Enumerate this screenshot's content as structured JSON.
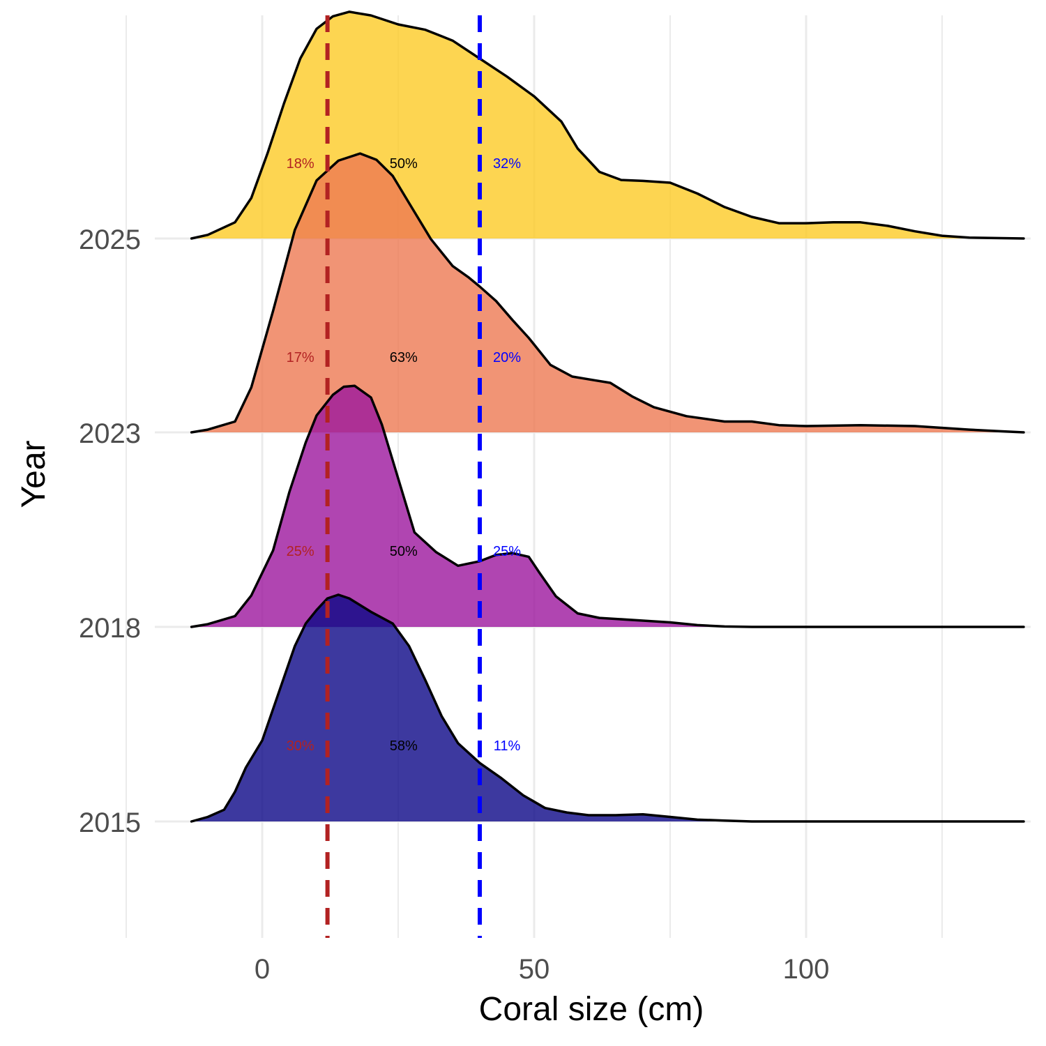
{
  "chart_data": {
    "type": "ridgeline",
    "xlabel": "Coral size (cm)",
    "ylabel": "Year",
    "xlim": [
      -26,
      141
    ],
    "x_ticks": [
      0,
      50,
      100
    ],
    "grid": true,
    "categories": [
      "2015",
      "2018",
      "2023",
      "2025"
    ],
    "thresholds": [
      {
        "name": "lower",
        "value": 12,
        "color": "#b22222",
        "style": "dashed"
      },
      {
        "name": "upper",
        "value": 40,
        "color": "#0000ff",
        "style": "dashed"
      }
    ],
    "series": [
      {
        "year": "2015",
        "fill": "#0d0887",
        "points": [
          [
            -13,
            0
          ],
          [
            -10,
            0.05
          ],
          [
            -7,
            0.13
          ],
          [
            -5,
            0.33
          ],
          [
            -3,
            0.6
          ],
          [
            0,
            0.9
          ],
          [
            2,
            1.25
          ],
          [
            4,
            1.6
          ],
          [
            6,
            1.95
          ],
          [
            8,
            2.2
          ],
          [
            10,
            2.35
          ],
          [
            12,
            2.48
          ],
          [
            14,
            2.52
          ],
          [
            16,
            2.48
          ],
          [
            20,
            2.33
          ],
          [
            24,
            2.2
          ],
          [
            27,
            1.95
          ],
          [
            30,
            1.57
          ],
          [
            33,
            1.17
          ],
          [
            36,
            0.87
          ],
          [
            40,
            0.65
          ],
          [
            44,
            0.48
          ],
          [
            48,
            0.29
          ],
          [
            52,
            0.15
          ],
          [
            56,
            0.1
          ],
          [
            60,
            0.07
          ],
          [
            65,
            0.07
          ],
          [
            70,
            0.08
          ],
          [
            75,
            0.05
          ],
          [
            80,
            0.02
          ],
          [
            85,
            0.01
          ],
          [
            90,
            0
          ],
          [
            140,
            0
          ]
        ]
      },
      {
        "year": "2018",
        "fill": "#9c179e",
        "points": [
          [
            -13,
            0
          ],
          [
            -10,
            0.03
          ],
          [
            -5,
            0.12
          ],
          [
            -2,
            0.35
          ],
          [
            2,
            0.85
          ],
          [
            5,
            1.5
          ],
          [
            8,
            2.05
          ],
          [
            10,
            2.35
          ],
          [
            13,
            2.58
          ],
          [
            15,
            2.67
          ],
          [
            17,
            2.68
          ],
          [
            20,
            2.55
          ],
          [
            22,
            2.25
          ],
          [
            25,
            1.65
          ],
          [
            28,
            1.05
          ],
          [
            32,
            0.83
          ],
          [
            36,
            0.68
          ],
          [
            40,
            0.73
          ],
          [
            43,
            0.8
          ],
          [
            46,
            0.82
          ],
          [
            49,
            0.78
          ],
          [
            51,
            0.6
          ],
          [
            54,
            0.34
          ],
          [
            58,
            0.15
          ],
          [
            62,
            0.1
          ],
          [
            70,
            0.07
          ],
          [
            75,
            0.05
          ],
          [
            80,
            0.02
          ],
          [
            85,
            0.005
          ],
          [
            90,
            0
          ],
          [
            140,
            0
          ]
        ]
      },
      {
        "year": "2023",
        "fill": "#ed7953",
        "points": [
          [
            -13,
            0
          ],
          [
            -10,
            0.03
          ],
          [
            -5,
            0.12
          ],
          [
            -2,
            0.5
          ],
          [
            2,
            1.35
          ],
          [
            6,
            2.25
          ],
          [
            10,
            2.8
          ],
          [
            14,
            3.02
          ],
          [
            18,
            3.1
          ],
          [
            21,
            3.03
          ],
          [
            24,
            2.85
          ],
          [
            27,
            2.55
          ],
          [
            31,
            2.15
          ],
          [
            35,
            1.85
          ],
          [
            38,
            1.72
          ],
          [
            40,
            1.62
          ],
          [
            43,
            1.46
          ],
          [
            46,
            1.25
          ],
          [
            49,
            1.05
          ],
          [
            53,
            0.75
          ],
          [
            57,
            0.62
          ],
          [
            61,
            0.58
          ],
          [
            64,
            0.55
          ],
          [
            68,
            0.4
          ],
          [
            72,
            0.28
          ],
          [
            78,
            0.18
          ],
          [
            85,
            0.12
          ],
          [
            90,
            0.12
          ],
          [
            95,
            0.08
          ],
          [
            100,
            0.07
          ],
          [
            110,
            0.08
          ],
          [
            120,
            0.07
          ],
          [
            130,
            0.03
          ],
          [
            135,
            0.015
          ],
          [
            140,
            0
          ]
        ]
      },
      {
        "year": "2025",
        "fill": "#fdca26",
        "points": [
          [
            -13,
            0
          ],
          [
            -10,
            0.04
          ],
          [
            -5,
            0.18
          ],
          [
            -2,
            0.45
          ],
          [
            1,
            0.95
          ],
          [
            4,
            1.5
          ],
          [
            7,
            2.0
          ],
          [
            10,
            2.33
          ],
          [
            13,
            2.47
          ],
          [
            16,
            2.52
          ],
          [
            20,
            2.48
          ],
          [
            25,
            2.38
          ],
          [
            30,
            2.32
          ],
          [
            35,
            2.2
          ],
          [
            40,
            2.0
          ],
          [
            45,
            1.8
          ],
          [
            50,
            1.58
          ],
          [
            55,
            1.3
          ],
          [
            58,
            1.0
          ],
          [
            62,
            0.74
          ],
          [
            66,
            0.65
          ],
          [
            70,
            0.64
          ],
          [
            75,
            0.62
          ],
          [
            80,
            0.5
          ],
          [
            85,
            0.35
          ],
          [
            90,
            0.24
          ],
          [
            95,
            0.17
          ],
          [
            100,
            0.17
          ],
          [
            105,
            0.18
          ],
          [
            110,
            0.18
          ],
          [
            115,
            0.14
          ],
          [
            120,
            0.08
          ],
          [
            125,
            0.03
          ],
          [
            130,
            0.01
          ],
          [
            140,
            0
          ]
        ]
      }
    ],
    "annotations": [
      {
        "year": "2015",
        "low": "30%",
        "mid": "58%",
        "high": "11%"
      },
      {
        "year": "2018",
        "low": "25%",
        "mid": "50%",
        "high": "25%"
      },
      {
        "year": "2023",
        "low": "17%",
        "mid": "63%",
        "high": "20%"
      },
      {
        "year": "2025",
        "low": "18%",
        "mid": "50%",
        "high": "32%"
      }
    ],
    "annotation_x": {
      "low": 7,
      "mid": 26,
      "high": 45
    },
    "annotation_colors": {
      "low": "#b22222",
      "mid": "#000000",
      "high": "#0000ff"
    }
  }
}
